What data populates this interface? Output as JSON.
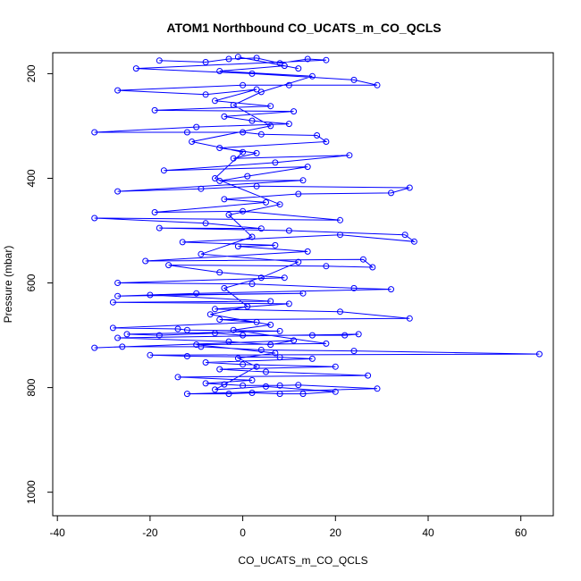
{
  "chart_data": {
    "type": "line",
    "title": "ATOM1 Northbound CO_UCATS_m_CO_QCLS",
    "xlabel": "CO_UCATS_m_CO_QCLS",
    "ylabel": "Pressure (mbar)",
    "xlim": [
      -41,
      67
    ],
    "ylim": [
      1045,
      160
    ],
    "y_reversed": true,
    "grid": false,
    "legend": "none",
    "xticks": [
      -40,
      -20,
      0,
      20,
      40,
      60
    ],
    "yticks": [
      200,
      400,
      600,
      800,
      1000
    ],
    "colors": {
      "series": "#0000ff",
      "axis": "#000000"
    },
    "series": [
      {
        "points": [
          {
            "x": -18,
            "y": 175
          },
          {
            "x": -8,
            "y": 178
          },
          {
            "x": -3,
            "y": 172
          },
          {
            "x": 3,
            "y": 170
          },
          {
            "x": 8,
            "y": 180
          },
          {
            "x": 14,
            "y": 172
          },
          {
            "x": 18,
            "y": 174
          },
          {
            "x": -23,
            "y": 190
          },
          {
            "x": 2,
            "y": 200
          },
          {
            "x": 24,
            "y": 212
          },
          {
            "x": 29,
            "y": 222
          },
          {
            "x": 10,
            "y": 222
          },
          {
            "x": 0,
            "y": 222
          },
          {
            "x": -27,
            "y": 232
          },
          {
            "x": -8,
            "y": 240
          },
          {
            "x": 3,
            "y": 230
          },
          {
            "x": -6,
            "y": 252
          },
          {
            "x": 6,
            "y": 262
          },
          {
            "x": -19,
            "y": 270
          },
          {
            "x": 11,
            "y": 272
          },
          {
            "x": -4,
            "y": 282
          },
          {
            "x": 2,
            "y": 290
          },
          {
            "x": 10,
            "y": 296
          },
          {
            "x": -10,
            "y": 302
          },
          {
            "x": -32,
            "y": 312
          },
          {
            "x": -12,
            "y": 312
          },
          {
            "x": 0,
            "y": 312
          },
          {
            "x": 4,
            "y": 316
          },
          {
            "x": 16,
            "y": 318
          },
          {
            "x": 18,
            "y": 330
          },
          {
            "x": -5,
            "y": 342
          },
          {
            "x": 3,
            "y": 352
          },
          {
            "x": -2,
            "y": 362
          },
          {
            "x": 23,
            "y": 356
          },
          {
            "x": 7,
            "y": 370
          },
          {
            "x": -17,
            "y": 385
          },
          {
            "x": 14,
            "y": 378
          },
          {
            "x": 1,
            "y": 396
          },
          {
            "x": -5,
            "y": 405
          },
          {
            "x": 13,
            "y": 404
          },
          {
            "x": -27,
            "y": 425
          },
          {
            "x": -9,
            "y": 420
          },
          {
            "x": 3,
            "y": 415
          },
          {
            "x": 36,
            "y": 418
          },
          {
            "x": 32,
            "y": 428
          },
          {
            "x": 12,
            "y": 430
          },
          {
            "x": -4,
            "y": 440
          },
          {
            "x": 5,
            "y": 446
          },
          {
            "x": -19,
            "y": 465
          },
          {
            "x": 0,
            "y": 463
          },
          {
            "x": 21,
            "y": 480
          },
          {
            "x": -32,
            "y": 476
          },
          {
            "x": -8,
            "y": 486
          },
          {
            "x": 4,
            "y": 496
          },
          {
            "x": -18,
            "y": 495
          },
          {
            "x": 10,
            "y": 500
          },
          {
            "x": 35,
            "y": 508
          },
          {
            "x": 37,
            "y": 521
          },
          {
            "x": 21,
            "y": 508
          },
          {
            "x": -13,
            "y": 522
          },
          {
            "x": 7,
            "y": 528
          },
          {
            "x": -1,
            "y": 530
          },
          {
            "x": 14,
            "y": 540
          },
          {
            "x": -21,
            "y": 558
          },
          {
            "x": 26,
            "y": 555
          },
          {
            "x": 28,
            "y": 570
          },
          {
            "x": 18,
            "y": 568
          },
          {
            "x": -16,
            "y": 566
          },
          {
            "x": -5,
            "y": 580
          },
          {
            "x": 9,
            "y": 590
          },
          {
            "x": -27,
            "y": 600
          },
          {
            "x": 2,
            "y": 602
          },
          {
            "x": 24,
            "y": 610
          },
          {
            "x": 32,
            "y": 612
          },
          {
            "x": -10,
            "y": 620
          },
          {
            "x": -27,
            "y": 625
          },
          {
            "x": 13,
            "y": 620
          },
          {
            "x": -20,
            "y": 623
          },
          {
            "x": 6,
            "y": 635
          },
          {
            "x": -28,
            "y": 637
          },
          {
            "x": 10,
            "y": 640
          },
          {
            "x": -6,
            "y": 650
          },
          {
            "x": 21,
            "y": 655
          },
          {
            "x": 36,
            "y": 668
          },
          {
            "x": -5,
            "y": 670
          },
          {
            "x": 3,
            "y": 675
          },
          {
            "x": -28,
            "y": 686
          },
          {
            "x": -14,
            "y": 688
          },
          {
            "x": -12,
            "y": 690
          },
          {
            "x": 8,
            "y": 692
          },
          {
            "x": -25,
            "y": 698
          },
          {
            "x": -18,
            "y": 700
          },
          {
            "x": -6,
            "y": 696
          },
          {
            "x": 0,
            "y": 700
          },
          {
            "x": 15,
            "y": 700
          },
          {
            "x": 22,
            "y": 700
          },
          {
            "x": 25,
            "y": 698
          },
          {
            "x": -27,
            "y": 705
          },
          {
            "x": -3,
            "y": 712
          },
          {
            "x": 6,
            "y": 718
          },
          {
            "x": 11,
            "y": 710
          },
          {
            "x": -32,
            "y": 724
          },
          {
            "x": -26,
            "y": 722
          },
          {
            "x": -9,
            "y": 722
          },
          {
            "x": 4,
            "y": 728
          },
          {
            "x": 24,
            "y": 730
          },
          {
            "x": 64,
            "y": 736
          },
          {
            "x": -20,
            "y": 738
          },
          {
            "x": -12,
            "y": 740
          },
          {
            "x": 8,
            "y": 742
          },
          {
            "x": 15,
            "y": 745
          },
          {
            "x": -8,
            "y": 752
          },
          {
            "x": 0,
            "y": 756
          },
          {
            "x": 20,
            "y": 760
          },
          {
            "x": -5,
            "y": 765
          },
          {
            "x": 5,
            "y": 770
          },
          {
            "x": 27,
            "y": 777
          },
          {
            "x": -14,
            "y": 780
          },
          {
            "x": 2,
            "y": 786
          },
          {
            "x": -8,
            "y": 792
          },
          {
            "x": -4,
            "y": 794
          },
          {
            "x": 0,
            "y": 796
          },
          {
            "x": 8,
            "y": 796
          },
          {
            "x": 12,
            "y": 795
          },
          {
            "x": 29,
            "y": 802
          },
          {
            "x": -12,
            "y": 812
          },
          {
            "x": -3,
            "y": 812
          },
          {
            "x": 2,
            "y": 810
          },
          {
            "x": 8,
            "y": 812
          },
          {
            "x": 13,
            "y": 812
          },
          {
            "x": 20,
            "y": 808
          },
          {
            "x": 5,
            "y": 798
          },
          {
            "x": -6,
            "y": 804
          },
          {
            "x": 3,
            "y": 760
          },
          {
            "x": -1,
            "y": 744
          },
          {
            "x": 7,
            "y": 734
          },
          {
            "x": -10,
            "y": 718
          },
          {
            "x": 18,
            "y": 716
          },
          {
            "x": -2,
            "y": 690
          },
          {
            "x": 6,
            "y": 680
          },
          {
            "x": -7,
            "y": 660
          },
          {
            "x": 1,
            "y": 645
          },
          {
            "x": -4,
            "y": 610
          },
          {
            "x": 4,
            "y": 590
          },
          {
            "x": 12,
            "y": 560
          },
          {
            "x": -9,
            "y": 545
          },
          {
            "x": 2,
            "y": 512
          },
          {
            "x": -3,
            "y": 470
          },
          {
            "x": 8,
            "y": 450
          },
          {
            "x": -6,
            "y": 400
          },
          {
            "x": 0,
            "y": 350
          },
          {
            "x": -11,
            "y": 330
          },
          {
            "x": 6,
            "y": 300
          },
          {
            "x": -2,
            "y": 260
          },
          {
            "x": 4,
            "y": 235
          },
          {
            "x": 15,
            "y": 205
          },
          {
            "x": -5,
            "y": 195
          },
          {
            "x": 9,
            "y": 185
          },
          {
            "x": -1,
            "y": 168
          },
          {
            "x": 12,
            "y": 190
          }
        ]
      }
    ]
  }
}
